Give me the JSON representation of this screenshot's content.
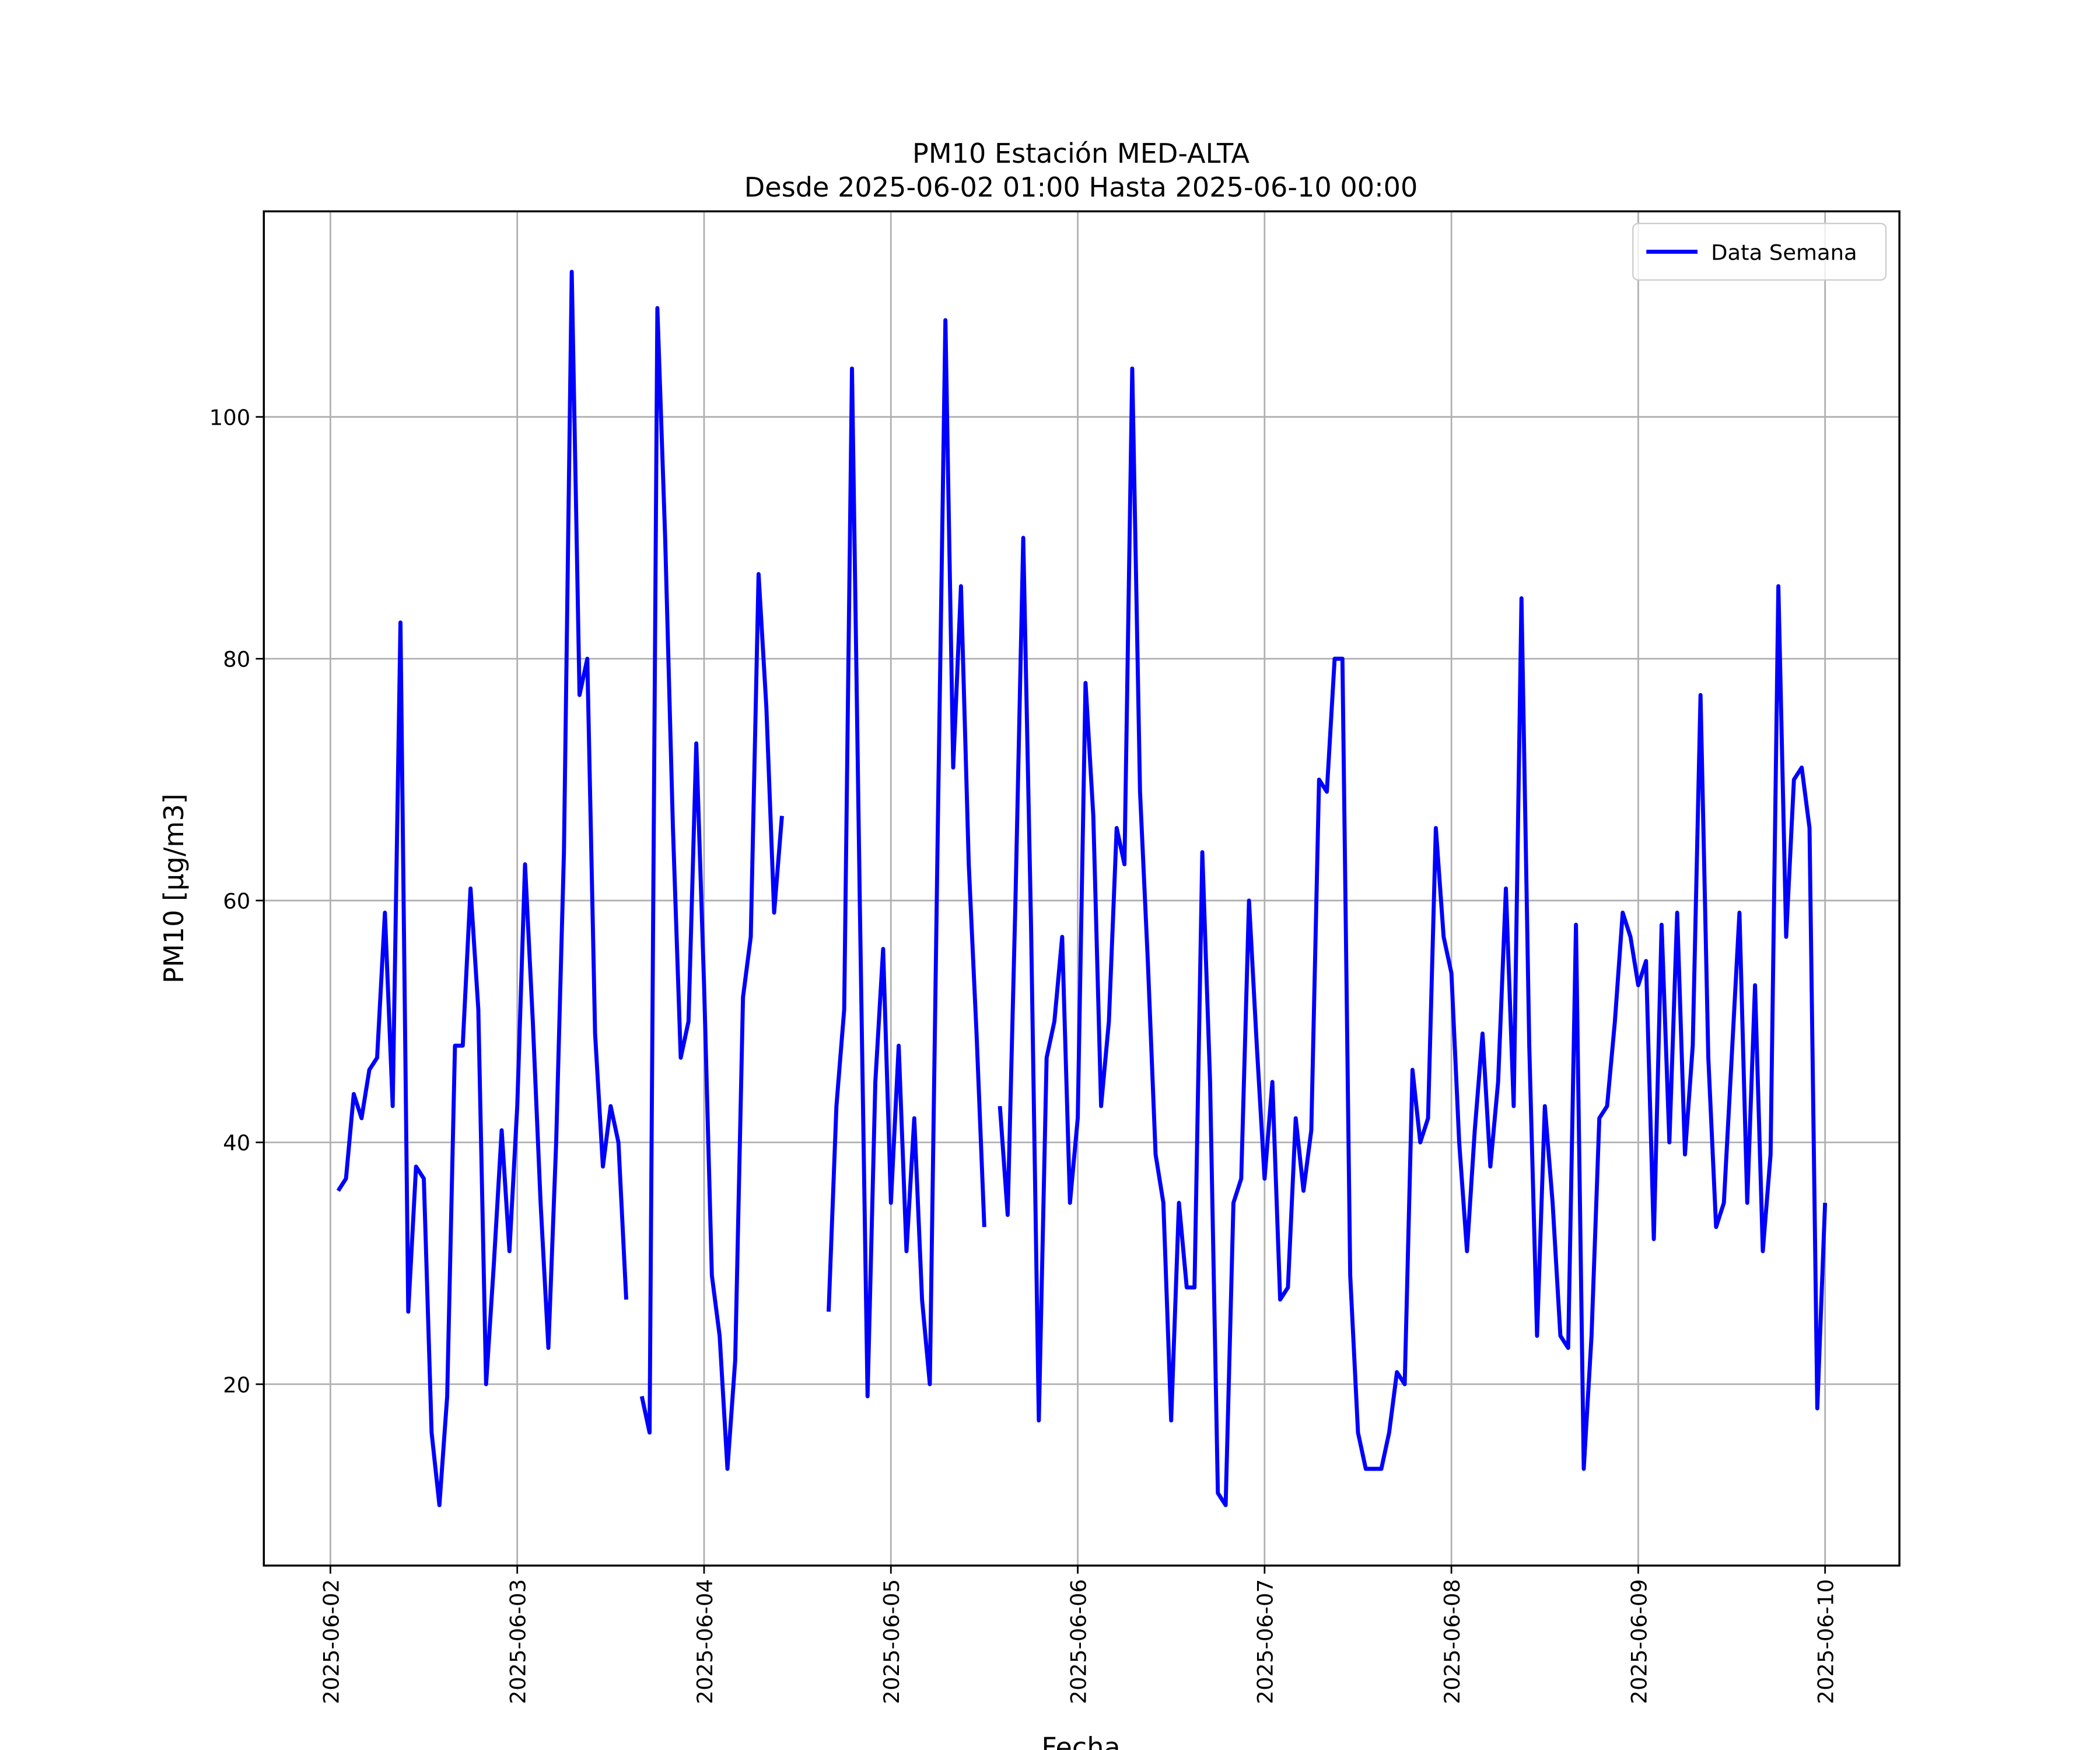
{
  "chart_data": {
    "type": "line",
    "title": [
      "PM10 Estación MED-ALTA",
      "Desde 2025-06-02 01:00 Hasta 2025-06-10 00:00"
    ],
    "xlabel": "Fecha",
    "ylabel": "PM10 [μg/m3]",
    "x": [
      "2025-06-02 01:00",
      "2025-06-02 02:00",
      "2025-06-02 03:00",
      "2025-06-02 04:00",
      "2025-06-02 05:00",
      "2025-06-02 06:00",
      "2025-06-02 07:00",
      "2025-06-02 08:00",
      "2025-06-02 09:00",
      "2025-06-02 10:00",
      "2025-06-02 11:00",
      "2025-06-02 12:00",
      "2025-06-02 13:00",
      "2025-06-02 14:00",
      "2025-06-02 15:00",
      "2025-06-02 16:00",
      "2025-06-02 17:00",
      "2025-06-02 18:00",
      "2025-06-02 19:00",
      "2025-06-02 20:00",
      "2025-06-02 21:00",
      "2025-06-02 22:00",
      "2025-06-02 23:00",
      "2025-06-03 00:00",
      "2025-06-03 01:00",
      "2025-06-03 02:00",
      "2025-06-03 03:00",
      "2025-06-03 04:00",
      "2025-06-03 05:00",
      "2025-06-03 06:00",
      "2025-06-03 07:00",
      "2025-06-03 08:00",
      "2025-06-03 09:00",
      "2025-06-03 10:00",
      "2025-06-03 11:00",
      "2025-06-03 12:00",
      "2025-06-03 13:00",
      "2025-06-03 14:00",
      "2025-06-03 15:00",
      "2025-06-03 16:00",
      "2025-06-03 17:00",
      "2025-06-03 18:00",
      "2025-06-03 19:00",
      "2025-06-03 20:00",
      "2025-06-03 21:00",
      "2025-06-03 22:00",
      "2025-06-03 23:00",
      "2025-06-04 00:00",
      "2025-06-04 01:00",
      "2025-06-04 02:00",
      "2025-06-04 03:00",
      "2025-06-04 04:00",
      "2025-06-04 05:00",
      "2025-06-04 06:00",
      "2025-06-04 07:00",
      "2025-06-04 08:00",
      "2025-06-04 09:00",
      "2025-06-04 10:00",
      "2025-06-04 11:00",
      "2025-06-04 12:00",
      "2025-06-04 13:00",
      "2025-06-04 14:00",
      "2025-06-04 15:00",
      "2025-06-04 16:00",
      "2025-06-04 17:00",
      "2025-06-04 18:00",
      "2025-06-04 19:00",
      "2025-06-04 20:00",
      "2025-06-04 21:00",
      "2025-06-04 22:00",
      "2025-06-04 23:00",
      "2025-06-05 00:00",
      "2025-06-05 01:00",
      "2025-06-05 02:00",
      "2025-06-05 03:00",
      "2025-06-05 04:00",
      "2025-06-05 05:00",
      "2025-06-05 06:00",
      "2025-06-05 07:00",
      "2025-06-05 08:00",
      "2025-06-05 09:00",
      "2025-06-05 10:00",
      "2025-06-05 11:00",
      "2025-06-05 12:00",
      "2025-06-05 13:00",
      "2025-06-05 14:00",
      "2025-06-05 15:00",
      "2025-06-05 16:00",
      "2025-06-05 17:00",
      "2025-06-05 18:00",
      "2025-06-05 19:00",
      "2025-06-05 20:00",
      "2025-06-05 21:00",
      "2025-06-05 22:00",
      "2025-06-05 23:00",
      "2025-06-06 00:00",
      "2025-06-06 01:00",
      "2025-06-06 02:00",
      "2025-06-06 03:00",
      "2025-06-06 04:00",
      "2025-06-06 05:00",
      "2025-06-06 06:00",
      "2025-06-06 07:00",
      "2025-06-06 08:00",
      "2025-06-06 09:00",
      "2025-06-06 10:00",
      "2025-06-06 11:00",
      "2025-06-06 12:00",
      "2025-06-06 13:00",
      "2025-06-06 14:00",
      "2025-06-06 15:00",
      "2025-06-06 16:00",
      "2025-06-06 17:00",
      "2025-06-06 18:00",
      "2025-06-06 19:00",
      "2025-06-06 20:00",
      "2025-06-06 21:00",
      "2025-06-06 22:00",
      "2025-06-06 23:00",
      "2025-06-07 00:00",
      "2025-06-07 01:00",
      "2025-06-07 02:00",
      "2025-06-07 03:00",
      "2025-06-07 04:00",
      "2025-06-07 05:00",
      "2025-06-07 06:00",
      "2025-06-07 07:00",
      "2025-06-07 08:00",
      "2025-06-07 09:00",
      "2025-06-07 10:00",
      "2025-06-07 11:00",
      "2025-06-07 12:00",
      "2025-06-07 13:00",
      "2025-06-07 14:00",
      "2025-06-07 15:00",
      "2025-06-07 16:00",
      "2025-06-07 17:00",
      "2025-06-07 18:00",
      "2025-06-07 19:00",
      "2025-06-07 20:00",
      "2025-06-07 21:00",
      "2025-06-07 22:00",
      "2025-06-07 23:00",
      "2025-06-08 00:00",
      "2025-06-08 01:00",
      "2025-06-08 02:00",
      "2025-06-08 03:00",
      "2025-06-08 04:00",
      "2025-06-08 05:00",
      "2025-06-08 06:00",
      "2025-06-08 07:00",
      "2025-06-08 08:00",
      "2025-06-08 09:00",
      "2025-06-08 10:00",
      "2025-06-08 11:00",
      "2025-06-08 12:00",
      "2025-06-08 13:00",
      "2025-06-08 14:00",
      "2025-06-08 15:00",
      "2025-06-08 16:00",
      "2025-06-08 17:00",
      "2025-06-08 18:00",
      "2025-06-08 19:00",
      "2025-06-08 20:00",
      "2025-06-08 21:00",
      "2025-06-08 22:00",
      "2025-06-08 23:00",
      "2025-06-09 00:00",
      "2025-06-09 01:00",
      "2025-06-09 02:00",
      "2025-06-09 03:00",
      "2025-06-09 04:00",
      "2025-06-09 05:00",
      "2025-06-09 06:00",
      "2025-06-09 07:00",
      "2025-06-09 08:00",
      "2025-06-09 09:00",
      "2025-06-09 10:00",
      "2025-06-09 11:00",
      "2025-06-09 12:00",
      "2025-06-09 13:00",
      "2025-06-09 14:00",
      "2025-06-09 15:00",
      "2025-06-09 16:00",
      "2025-06-09 17:00",
      "2025-06-09 18:00",
      "2025-06-09 19:00",
      "2025-06-09 20:00",
      "2025-06-09 21:00",
      "2025-06-09 22:00",
      "2025-06-09 23:00",
      "2025-06-10 00:00"
    ],
    "series": [
      {
        "name": "Data Semana",
        "color": "#0000ff",
        "values": [
          36,
          37,
          44,
          42,
          46,
          47,
          59,
          43,
          83,
          26,
          38,
          37,
          16,
          10,
          19,
          48,
          48,
          61,
          51,
          20,
          30,
          41,
          31,
          43,
          63,
          50,
          35,
          23,
          40,
          64,
          112,
          77,
          80,
          49,
          38,
          43,
          40,
          27,
          null,
          19,
          16,
          109,
          90,
          66,
          47,
          50,
          73,
          53,
          29,
          24,
          13,
          22,
          52,
          57,
          87,
          76,
          59,
          67,
          null,
          null,
          null,
          null,
          null,
          26,
          43,
          51,
          104,
          60,
          19,
          45,
          56,
          35,
          48,
          31,
          42,
          27,
          20,
          65,
          108,
          71,
          86,
          63,
          49,
          33,
          null,
          43,
          34,
          60,
          90,
          58,
          17,
          47,
          50,
          57,
          35,
          42,
          78,
          67,
          43,
          50,
          66,
          63,
          104,
          69,
          55,
          39,
          35,
          17,
          35,
          28,
          28,
          64,
          45,
          11,
          10,
          35,
          37,
          60,
          48,
          37,
          45,
          27,
          28,
          42,
          36,
          41,
          70,
          69,
          80,
          80,
          29,
          16,
          13,
          13,
          13,
          16,
          21,
          20,
          46,
          40,
          42,
          66,
          57,
          54,
          40,
          31,
          41,
          49,
          38,
          45,
          61,
          43,
          85,
          48,
          24,
          43,
          35,
          24,
          23,
          58,
          13,
          24,
          42,
          43,
          50,
          59,
          57,
          53,
          55,
          32,
          58,
          40,
          59,
          39,
          48,
          77,
          47,
          33,
          35,
          47,
          59,
          35,
          53,
          31,
          39,
          86,
          57,
          70,
          71,
          66,
          18,
          35
        ]
      }
    ],
    "xlim": [
      "2025-06-01 15:27",
      "2025-06-10 09:33"
    ],
    "xticks": [
      "2025-06-02",
      "2025-06-03",
      "2025-06-04",
      "2025-06-05",
      "2025-06-06",
      "2025-06-07",
      "2025-06-08",
      "2025-06-09",
      "2025-06-10"
    ],
    "ylim": [
      5,
      117
    ],
    "yticks": [
      20,
      40,
      60,
      80,
      100
    ],
    "grid": true,
    "legend": "upper right"
  }
}
